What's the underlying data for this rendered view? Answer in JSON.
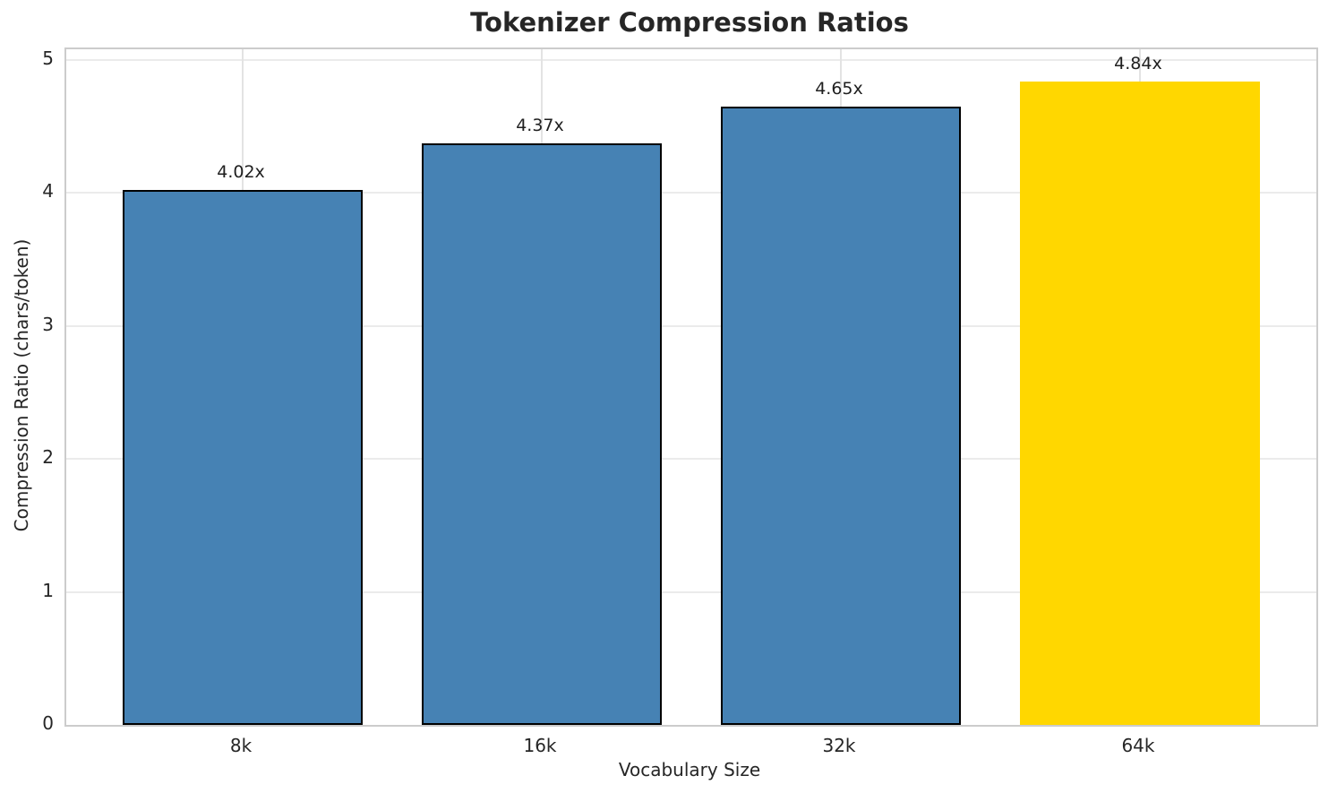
{
  "chart_data": {
    "type": "bar",
    "title": "Tokenizer Compression Ratios",
    "xlabel": "Vocabulary Size",
    "ylabel": "Compression Ratio (chars/token)",
    "categories": [
      "8k",
      "16k",
      "32k",
      "64k"
    ],
    "values": [
      4.02,
      4.37,
      4.65,
      4.84
    ],
    "bar_labels": [
      "4.02x",
      "4.37x",
      "4.65x",
      "4.84x"
    ],
    "yticks": [
      0,
      1,
      2,
      3,
      4,
      5
    ],
    "ylim": [
      0,
      5
    ],
    "grid": true,
    "legend": "none",
    "bar_colors": [
      "#4682b4",
      "#4682b4",
      "#4682b4",
      "#ffd700"
    ],
    "bar_edge_colors": [
      "#000000",
      "#000000",
      "#000000",
      "none"
    ],
    "highlighted_category": "64k"
  },
  "colors": {
    "bar_default": "#4682b4",
    "bar_highlight": "#ffd700",
    "bar_edge": "#000000",
    "grid": "#ebebeb",
    "spine": "#cccccc",
    "text": "#262626",
    "background": "#ffffff"
  }
}
